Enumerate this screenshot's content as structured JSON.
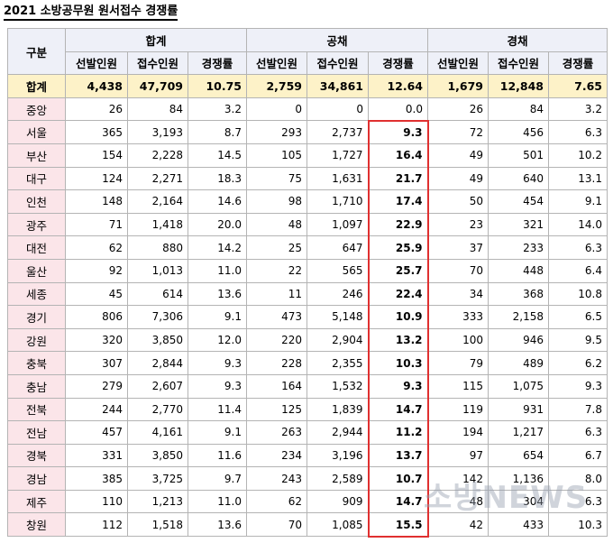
{
  "title": "2021 소방공무원 원서접수 경쟁률",
  "header": {
    "category_label": "구분",
    "groups": [
      "합계",
      "공채",
      "경채"
    ],
    "subheaders": [
      "선발인원",
      "접수인원",
      "경쟁률"
    ]
  },
  "total_row": {
    "label": "합계",
    "values": [
      "4,438",
      "47,709",
      "10.75",
      "2,759",
      "34,861",
      "12.64",
      "1,679",
      "12,848",
      "7.65"
    ]
  },
  "rows": [
    {
      "region": "중앙",
      "values": [
        "26",
        "84",
        "3.2",
        "0",
        "0",
        "0.0",
        "26",
        "84",
        "3.2"
      ]
    },
    {
      "region": "서울",
      "values": [
        "365",
        "3,193",
        "8.7",
        "293",
        "2,737",
        "9.3",
        "72",
        "456",
        "6.3"
      ]
    },
    {
      "region": "부산",
      "values": [
        "154",
        "2,228",
        "14.5",
        "105",
        "1,727",
        "16.4",
        "49",
        "501",
        "10.2"
      ]
    },
    {
      "region": "대구",
      "values": [
        "124",
        "2,271",
        "18.3",
        "75",
        "1,631",
        "21.7",
        "49",
        "640",
        "13.1"
      ]
    },
    {
      "region": "인천",
      "values": [
        "148",
        "2,164",
        "14.6",
        "98",
        "1,710",
        "17.4",
        "50",
        "454",
        "9.1"
      ]
    },
    {
      "region": "광주",
      "values": [
        "71",
        "1,418",
        "20.0",
        "48",
        "1,097",
        "22.9",
        "23",
        "321",
        "14.0"
      ]
    },
    {
      "region": "대전",
      "values": [
        "62",
        "880",
        "14.2",
        "25",
        "647",
        "25.9",
        "37",
        "233",
        "6.3"
      ]
    },
    {
      "region": "울산",
      "values": [
        "92",
        "1,013",
        "11.0",
        "22",
        "565",
        "25.7",
        "70",
        "448",
        "6.4"
      ]
    },
    {
      "region": "세종",
      "values": [
        "45",
        "614",
        "13.6",
        "11",
        "246",
        "22.4",
        "34",
        "368",
        "10.8"
      ]
    },
    {
      "region": "경기",
      "values": [
        "806",
        "7,306",
        "9.1",
        "473",
        "5,148",
        "10.9",
        "333",
        "2,158",
        "6.5"
      ]
    },
    {
      "region": "강원",
      "values": [
        "320",
        "3,850",
        "12.0",
        "220",
        "2,904",
        "13.2",
        "100",
        "946",
        "9.5"
      ]
    },
    {
      "region": "충북",
      "values": [
        "307",
        "2,844",
        "9.3",
        "228",
        "2,355",
        "10.3",
        "79",
        "489",
        "6.2"
      ]
    },
    {
      "region": "충남",
      "values": [
        "279",
        "2,607",
        "9.3",
        "164",
        "1,532",
        "9.3",
        "115",
        "1,075",
        "9.3"
      ]
    },
    {
      "region": "전북",
      "values": [
        "244",
        "2,770",
        "11.4",
        "125",
        "1,839",
        "14.7",
        "119",
        "931",
        "7.8"
      ]
    },
    {
      "region": "전남",
      "values": [
        "457",
        "4,161",
        "9.1",
        "263",
        "2,944",
        "11.2",
        "194",
        "1,217",
        "6.3"
      ]
    },
    {
      "region": "경북",
      "values": [
        "331",
        "3,850",
        "11.6",
        "234",
        "3,196",
        "13.7",
        "97",
        "654",
        "6.7"
      ]
    },
    {
      "region": "경남",
      "values": [
        "385",
        "3,725",
        "9.7",
        "243",
        "2,589",
        "10.7",
        "142",
        "1,136",
        "8.0"
      ]
    },
    {
      "region": "제주",
      "values": [
        "110",
        "1,213",
        "11.0",
        "62",
        "909",
        "14.7",
        "48",
        "304",
        "6.3"
      ]
    },
    {
      "region": "창원",
      "values": [
        "112",
        "1,518",
        "13.6",
        "70",
        "1,085",
        "15.5",
        "42",
        "433",
        "10.3"
      ]
    }
  ],
  "colors": {
    "header_bg": "#eef0f8",
    "total_bg": "#fdf2c8",
    "region_bg": "#fbe5e9",
    "highlight_border": "#e03030"
  },
  "watermark": "소방NEWS"
}
